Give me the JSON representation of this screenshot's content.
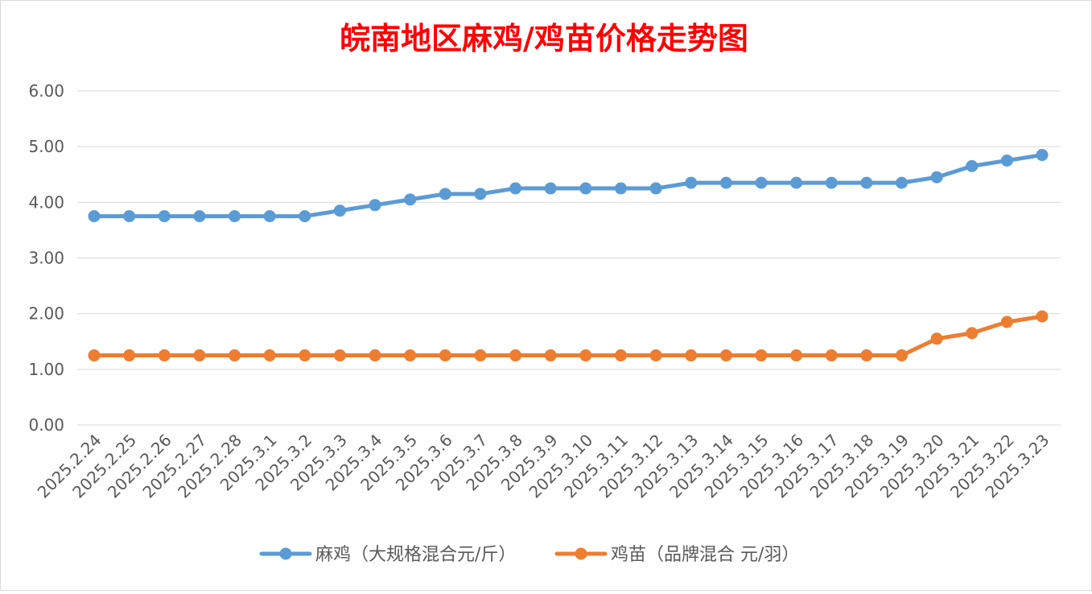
{
  "chart_data": {
    "type": "line",
    "title": "皖南地区麻鸡/鸡苗价格走势图",
    "xlabel": "",
    "ylabel": "",
    "ylim": [
      0,
      6
    ],
    "yticks": [
      "0.00",
      "1.00",
      "2.00",
      "3.00",
      "4.00",
      "5.00",
      "6.00"
    ],
    "grid": true,
    "legend_position": "bottom",
    "categories": [
      "2025.2.24",
      "2025.2.25",
      "2025.2.26",
      "2025.2.27",
      "2025.2.28",
      "2025.3.1",
      "2025.3.2",
      "2025.3.3",
      "2025.3.4",
      "2025.3.5",
      "2025.3.6",
      "2025.3.7",
      "2025.3.8",
      "2025.3.9",
      "2025.3.10",
      "2025.3.11",
      "2025.3.12",
      "2025.3.13",
      "2025.3.14",
      "2025.3.15",
      "2025.3.16",
      "2025.3.17",
      "2025.3.18",
      "2025.3.19",
      "2025.3.20",
      "2025.3.21",
      "2025.3.22",
      "2025.3.23"
    ],
    "series": [
      {
        "name": "麻鸡（大规格混合元/斤）",
        "color": "#5b9bd5",
        "values": [
          3.75,
          3.75,
          3.75,
          3.75,
          3.75,
          3.75,
          3.75,
          3.85,
          3.95,
          4.05,
          4.15,
          4.15,
          4.25,
          4.25,
          4.25,
          4.25,
          4.25,
          4.35,
          4.35,
          4.35,
          4.35,
          4.35,
          4.35,
          4.35,
          4.45,
          4.65,
          4.75,
          4.85
        ]
      },
      {
        "name": "鸡苗（品牌混合 元/羽）",
        "color": "#ed7d31",
        "values": [
          1.25,
          1.25,
          1.25,
          1.25,
          1.25,
          1.25,
          1.25,
          1.25,
          1.25,
          1.25,
          1.25,
          1.25,
          1.25,
          1.25,
          1.25,
          1.25,
          1.25,
          1.25,
          1.25,
          1.25,
          1.25,
          1.25,
          1.25,
          1.25,
          1.55,
          1.65,
          1.85,
          1.95
        ]
      }
    ],
    "colors": {
      "title": "#ff0000",
      "axis_text": "#595959",
      "gridline": "#d9d9d9"
    }
  }
}
